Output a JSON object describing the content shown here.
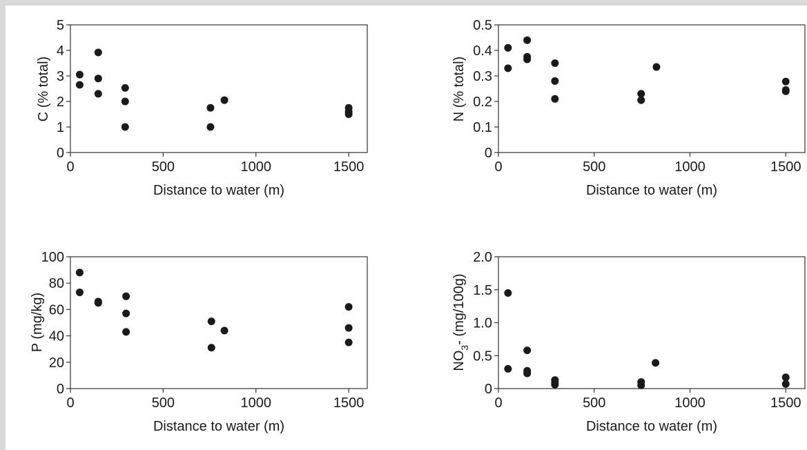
{
  "colors": {
    "point": "#1a1a1a",
    "axis": "#333333",
    "border": "#d9d9d9"
  },
  "chart_data": [
    {
      "type": "scatter",
      "xlabel": "Distance to water (m)",
      "ylabel": "C (% total)",
      "xlim": [
        0,
        1600
      ],
      "ylim": [
        0,
        5
      ],
      "xticks": [
        0,
        500,
        1000,
        1500
      ],
      "xtick_labels": [
        "0",
        "500",
        "1000",
        "1500"
      ],
      "yticks": [
        0,
        1,
        2,
        3,
        4,
        5
      ],
      "ytick_labels": [
        "0",
        "1",
        "2",
        "3",
        "4",
        "5"
      ],
      "grid": false,
      "points": [
        {
          "x": 50,
          "y": 3.05
        },
        {
          "x": 50,
          "y": 2.65
        },
        {
          "x": 150,
          "y": 3.92
        },
        {
          "x": 150,
          "y": 2.9
        },
        {
          "x": 150,
          "y": 2.3
        },
        {
          "x": 295,
          "y": 2.53
        },
        {
          "x": 295,
          "y": 2.0
        },
        {
          "x": 295,
          "y": 1.0
        },
        {
          "x": 755,
          "y": 1.75
        },
        {
          "x": 755,
          "y": 1.0
        },
        {
          "x": 830,
          "y": 2.05
        },
        {
          "x": 1500,
          "y": 1.75
        },
        {
          "x": 1500,
          "y": 1.6
        },
        {
          "x": 1500,
          "y": 1.5
        }
      ]
    },
    {
      "type": "scatter",
      "xlabel": "Distance to water (m)",
      "ylabel": "N (% total)",
      "xlim": [
        0,
        1600
      ],
      "ylim": [
        0,
        0.5
      ],
      "xticks": [
        0,
        500,
        1000,
        1500
      ],
      "xtick_labels": [
        "0",
        "500",
        "1000",
        "1500"
      ],
      "yticks": [
        0,
        0.1,
        0.2,
        0.3,
        0.4,
        0.5
      ],
      "ytick_labels": [
        "0",
        "0.1",
        "0.2",
        "0.3",
        "0.4",
        "0.5"
      ],
      "grid": false,
      "points": [
        {
          "x": 50,
          "y": 0.41
        },
        {
          "x": 50,
          "y": 0.33
        },
        {
          "x": 150,
          "y": 0.44
        },
        {
          "x": 150,
          "y": 0.375
        },
        {
          "x": 150,
          "y": 0.365
        },
        {
          "x": 295,
          "y": 0.35
        },
        {
          "x": 295,
          "y": 0.28
        },
        {
          "x": 295,
          "y": 0.21
        },
        {
          "x": 745,
          "y": 0.23
        },
        {
          "x": 745,
          "y": 0.205
        },
        {
          "x": 825,
          "y": 0.335
        },
        {
          "x": 1500,
          "y": 0.278
        },
        {
          "x": 1500,
          "y": 0.245
        },
        {
          "x": 1500,
          "y": 0.24
        }
      ]
    },
    {
      "type": "scatter",
      "xlabel": "Distance to water (m)",
      "ylabel": "P (mg/kg)",
      "xlim": [
        0,
        1600
      ],
      "ylim": [
        0,
        100
      ],
      "xticks": [
        0,
        500,
        1000,
        1500
      ],
      "xtick_labels": [
        "0",
        "500",
        "1000",
        "1500"
      ],
      "yticks": [
        0,
        20,
        40,
        60,
        80,
        100
      ],
      "ytick_labels": [
        "0",
        "20",
        "40",
        "60",
        "80",
        "100"
      ],
      "grid": false,
      "points": [
        {
          "x": 50,
          "y": 88
        },
        {
          "x": 50,
          "y": 73
        },
        {
          "x": 150,
          "y": 66
        },
        {
          "x": 150,
          "y": 65
        },
        {
          "x": 300,
          "y": 70
        },
        {
          "x": 300,
          "y": 57
        },
        {
          "x": 300,
          "y": 43
        },
        {
          "x": 760,
          "y": 51
        },
        {
          "x": 760,
          "y": 31
        },
        {
          "x": 830,
          "y": 44
        },
        {
          "x": 1500,
          "y": 62
        },
        {
          "x": 1500,
          "y": 46
        },
        {
          "x": 1500,
          "y": 35
        }
      ]
    },
    {
      "type": "scatter",
      "xlabel": "Distance to water (m)",
      "ylabel_parts": [
        "NO",
        "3",
        "- (mg/100g)"
      ],
      "xlim": [
        0,
        1600
      ],
      "ylim": [
        0,
        2.0
      ],
      "xticks": [
        0,
        500,
        1000,
        1500
      ],
      "xtick_labels": [
        "0",
        "500",
        "1000",
        "1500"
      ],
      "yticks": [
        0,
        0.5,
        1.0,
        1.5,
        2.0
      ],
      "ytick_labels": [
        "0",
        "0.5",
        "1.0",
        "1.5",
        "2.0"
      ],
      "grid": false,
      "points": [
        {
          "x": 50,
          "y": 1.45
        },
        {
          "x": 50,
          "y": 0.3
        },
        {
          "x": 150,
          "y": 0.58
        },
        {
          "x": 150,
          "y": 0.27
        },
        {
          "x": 150,
          "y": 0.23
        },
        {
          "x": 295,
          "y": 0.13
        },
        {
          "x": 295,
          "y": 0.09
        },
        {
          "x": 295,
          "y": 0.06
        },
        {
          "x": 745,
          "y": 0.1
        },
        {
          "x": 745,
          "y": 0.05
        },
        {
          "x": 820,
          "y": 0.39
        },
        {
          "x": 1500,
          "y": 0.17
        },
        {
          "x": 1500,
          "y": 0.07
        }
      ]
    }
  ]
}
